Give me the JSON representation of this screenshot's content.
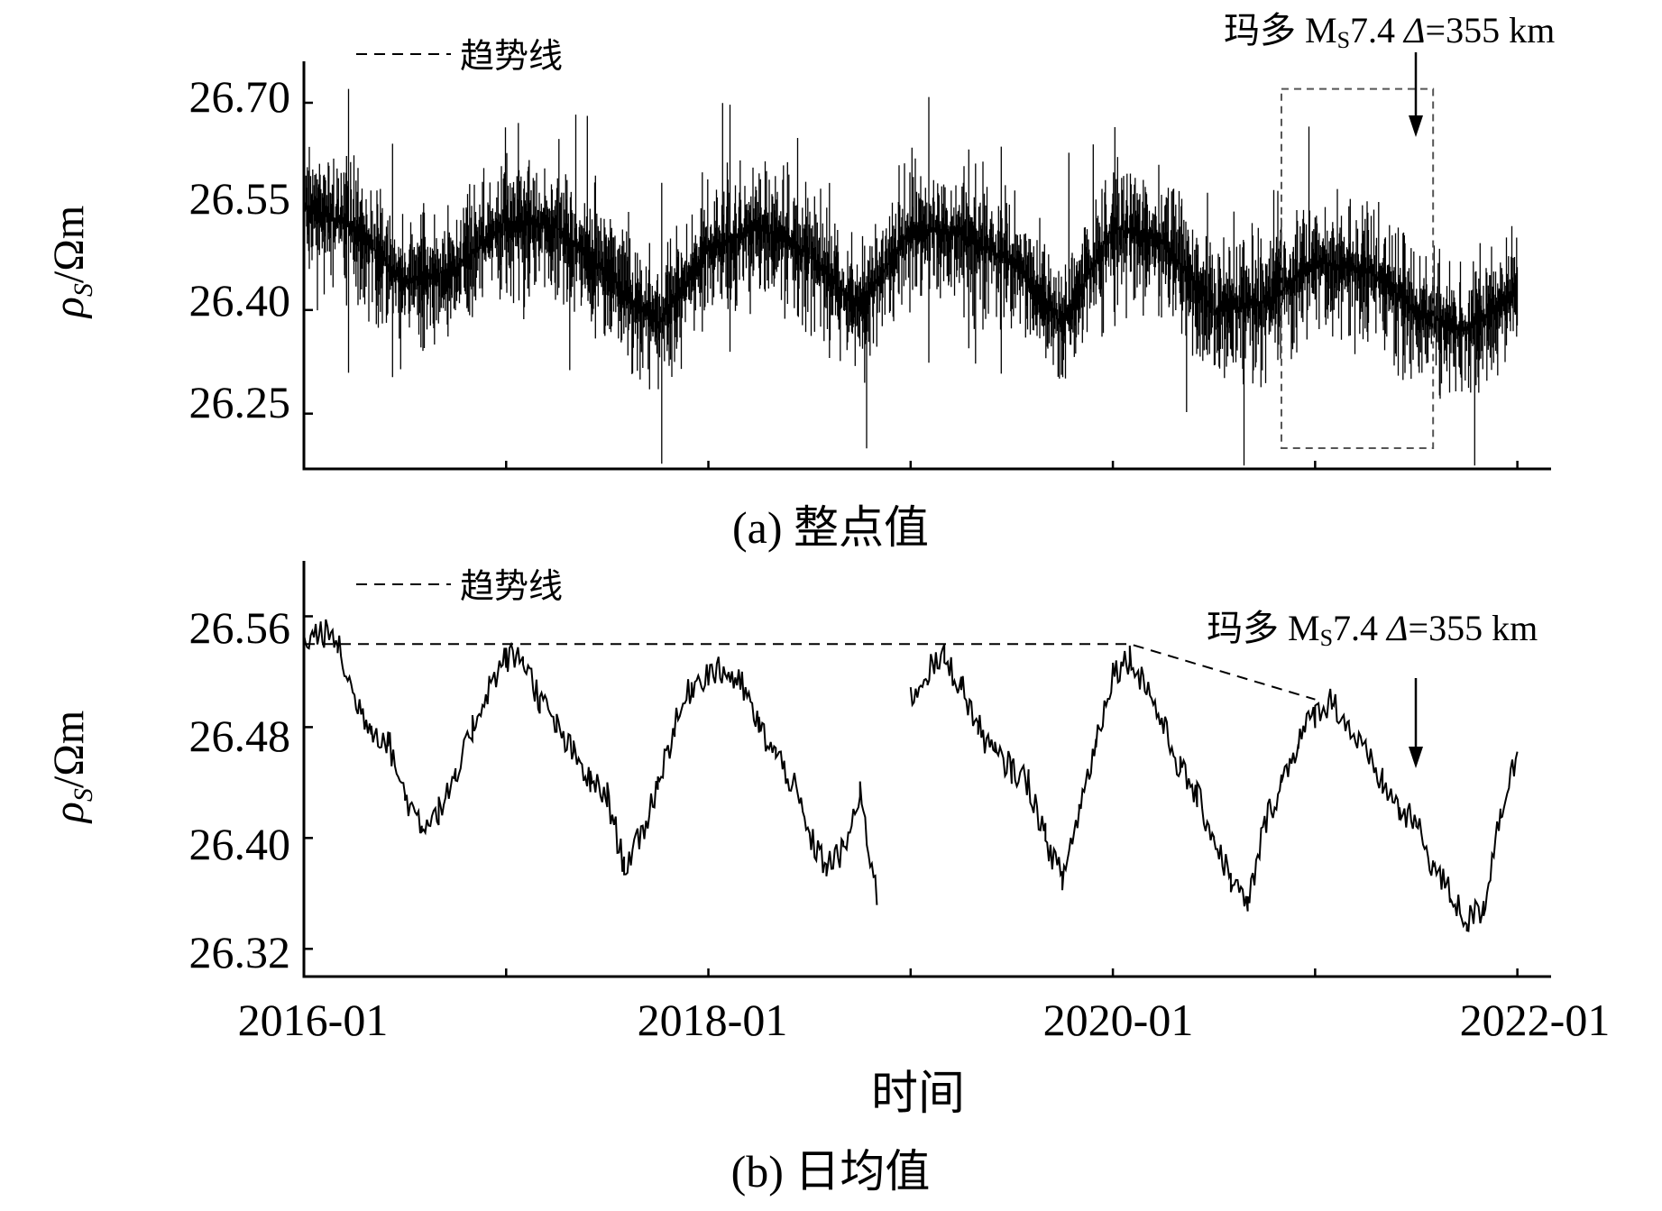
{
  "chart_data": [
    {
      "type": "line",
      "caption": "(a) 整点值",
      "ylabel": "ρS/Ωm",
      "ylabel_parts": {
        "rho": "ρ",
        "sub": "S",
        "unit": "/Ωm"
      },
      "yticks": [
        "26.70",
        "26.55",
        "26.40",
        "26.25"
      ],
      "ylim": [
        26.17,
        26.76
      ],
      "xlim": [
        "2016-01",
        "2022-03"
      ],
      "legend": {
        "label": "趋势线",
        "style": "dashed",
        "position": "top-left"
      },
      "annotation": {
        "prefix": "玛多 M",
        "sub": "S",
        "mag": "7.4 ",
        "delta": "Δ",
        "dist": "=355 km",
        "date": "2021-05"
      },
      "highlight_box": {
        "x": [
          "2020-11",
          "2021-08"
        ],
        "y": [
          26.2,
          26.72
        ]
      },
      "series": [
        {
          "x": [
            "2016-01",
            "2016-04",
            "2016-07",
            "2016-10",
            "2017-01",
            "2017-04",
            "2017-07",
            "2017-10",
            "2018-01",
            "2018-04",
            "2018-07",
            "2018-10",
            "2019-01",
            "2019-04",
            "2019-07",
            "2019-10",
            "2020-01",
            "2020-04",
            "2020-07",
            "2020-10",
            "2021-01",
            "2021-04",
            "2021-07",
            "2021-10",
            "2022-01"
          ],
          "y": [
            26.55,
            26.52,
            26.44,
            26.46,
            26.53,
            26.52,
            26.45,
            26.38,
            26.49,
            26.52,
            26.48,
            26.4,
            26.52,
            26.51,
            26.47,
            26.38,
            26.52,
            26.5,
            26.4,
            26.41,
            26.47,
            26.46,
            26.4,
            26.37,
            26.43
          ],
          "spread": 0.12
        }
      ]
    },
    {
      "type": "line",
      "caption": "(b) 日均值",
      "ylabel": "ρS/Ωm",
      "ylabel_parts": {
        "rho": "ρ",
        "sub": "S",
        "unit": "/Ωm"
      },
      "yticks": [
        "26.56",
        "26.48",
        "26.40",
        "26.32"
      ],
      "xticks": [
        "2016-01",
        "2018-01",
        "2020-01",
        "2022-01"
      ],
      "xlabel": "时间",
      "ylim": [
        26.3,
        26.6
      ],
      "xlim": [
        "2016-01",
        "2022-03"
      ],
      "legend": {
        "label": "趋势线",
        "style": "dashed",
        "position": "top-left"
      },
      "annotation": {
        "prefix": "玛多 M",
        "sub": "S",
        "mag": "7.4 ",
        "delta": "Δ",
        "dist": "=355 km",
        "date": "2021-05"
      },
      "trend_line": {
        "x": [
          "2016-01",
          "2020-02",
          "2021-01"
        ],
        "y": [
          26.54,
          26.54,
          26.5
        ]
      },
      "series": [
        {
          "x": [
            "2016-01",
            "2016-02",
            "2016-03",
            "2016-04",
            "2016-05",
            "2016-06",
            "2016-07",
            "2016-08",
            "2016-09",
            "2016-10",
            "2016-11",
            "2016-12",
            "2017-01",
            "2017-02",
            "2017-03",
            "2017-04",
            "2017-05",
            "2017-06",
            "2017-07",
            "2017-08",
            "2017-09",
            "2017-10",
            "2017-11",
            "2017-12",
            "2018-01",
            "2018-02",
            "2018-03",
            "2018-04",
            "2018-05",
            "2018-06",
            "2018-07",
            "2018-08",
            "2018-09",
            "2018-10",
            "2018-11",
            "2018-12",
            "2019-01",
            "2019-02",
            "2019-03",
            "2019-04",
            "2019-05",
            "2019-06",
            "2019-07",
            "2019-08",
            "2019-09",
            "2019-10",
            "2019-11",
            "2019-12",
            "2020-01",
            "2020-02",
            "2020-03",
            "2020-04",
            "2020-05",
            "2020-06",
            "2020-07",
            "2020-08",
            "2020-09",
            "2020-10",
            "2020-11",
            "2020-12",
            "2021-01",
            "2021-02",
            "2021-03",
            "2021-04",
            "2021-05",
            "2021-06",
            "2021-07",
            "2021-08",
            "2021-09",
            "2021-10",
            "2021-11",
            "2021-12",
            "2022-01"
          ],
          "y": [
            26.54,
            26.55,
            26.54,
            26.5,
            26.48,
            26.47,
            26.43,
            26.41,
            26.42,
            26.44,
            26.48,
            26.51,
            26.53,
            26.53,
            26.5,
            26.48,
            26.46,
            26.44,
            26.43,
            26.38,
            26.4,
            26.44,
            26.48,
            26.51,
            26.52,
            26.52,
            26.51,
            26.48,
            26.46,
            26.44,
            26.4,
            26.38,
            26.39,
            26.43,
            26.36,
            null,
            26.5,
            26.52,
            26.53,
            26.51,
            26.48,
            26.46,
            26.45,
            26.44,
            26.4,
            26.37,
            26.42,
            26.47,
            26.52,
            26.53,
            26.51,
            26.48,
            26.45,
            26.43,
            26.4,
            26.37,
            26.35,
            26.41,
            26.44,
            26.47,
            26.49,
            26.5,
            26.48,
            26.46,
            26.44,
            26.42,
            26.41,
            26.38,
            26.36,
            26.34,
            26.35,
            26.42,
            26.46
          ]
        }
      ]
    }
  ]
}
